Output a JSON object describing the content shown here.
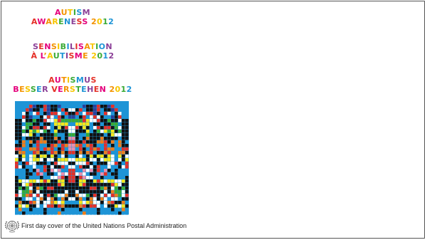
{
  "cover": {
    "titles": [
      {
        "lines": [
          "AUTISM",
          "AWARENESS 2012"
        ]
      },
      {
        "lines": [
          "SENSIBILISATION",
          "À L’AUTISME 2012"
        ]
      },
      {
        "lines": [
          "AUTISMUS",
          "BESSER VERSTEHEN 2012"
        ]
      }
    ],
    "letter_palette": [
      "#e4007c",
      "#f39200",
      "#f7c600",
      "#3aaa35",
      "#1e94d6",
      "#8b3f97",
      "#e53027"
    ],
    "stamp_art_colors": [
      "#1e94d6",
      "#111111",
      "#f5e61b",
      "#e53027",
      "#ffffff",
      "#ee7d1a",
      "#3aaa35",
      "#e98fb0",
      "#2b3f9a"
    ],
    "emblem_icon": "un-emblem-icon",
    "footer_text": "First day cover of the United Nations Postal Administration"
  }
}
